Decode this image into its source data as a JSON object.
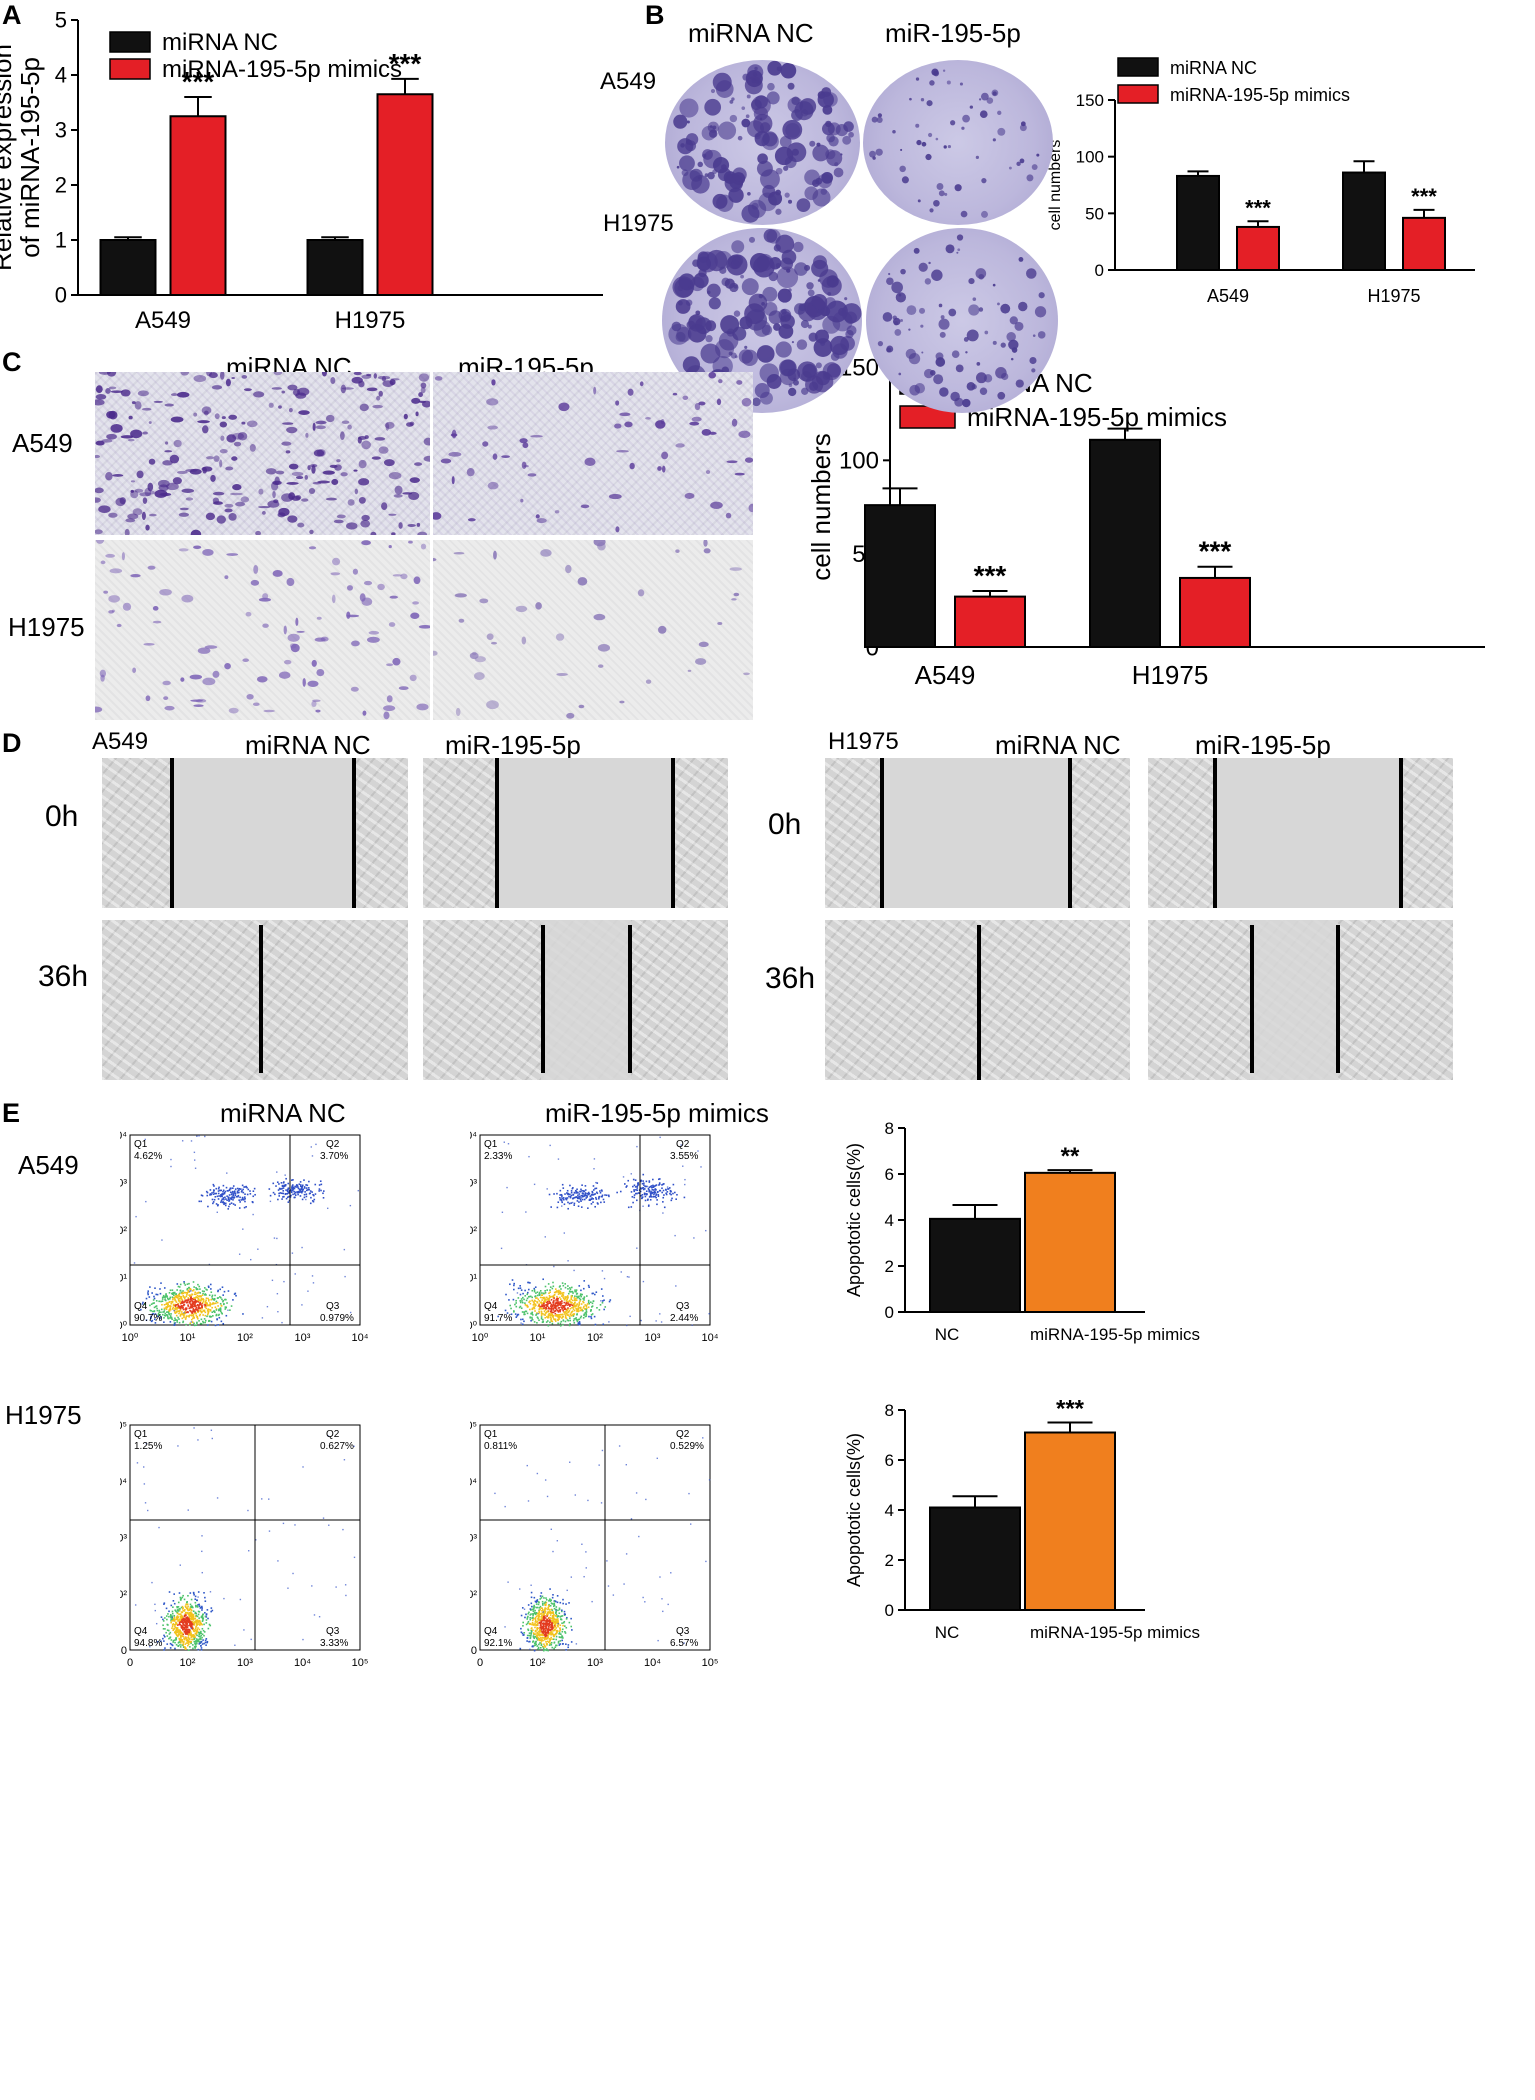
{
  "panels": {
    "A": "A",
    "B": "B",
    "C": "C",
    "D": "D",
    "E": "E"
  },
  "panel_b": {
    "col_labels": [
      "miRNA NC",
      "miR-195-5p"
    ],
    "row_labels": [
      "A549",
      "H1975"
    ]
  },
  "panel_c": {
    "col_labels": [
      "miRNA NC",
      "miR-195-5p"
    ],
    "row_labels": [
      "A549",
      "H1975"
    ]
  },
  "panel_d": {
    "left_cell": "A549",
    "right_cell": "H1975",
    "col_labels": [
      "miRNA NC",
      "miR-195-5p"
    ],
    "time_labels": [
      "0h",
      "36h"
    ]
  },
  "panel_e": {
    "col_labels": [
      "miRNA NC",
      "miR-195-5p mimics"
    ],
    "row_labels": [
      "A549",
      "H1975"
    ],
    "flow": [
      {
        "q1": "Q1",
        "q1v": "4.62%",
        "q2": "Q2",
        "q2v": "3.70%",
        "q3": "Q3",
        "q3v": "0.979%",
        "q4": "Q4",
        "q4v": "90.7%"
      },
      {
        "q1": "Q1",
        "q1v": "2.33%",
        "q2": "Q2",
        "q2v": "3.55%",
        "q3": "Q3",
        "q3v": "2.44%",
        "q4": "Q4",
        "q4v": "91.7%"
      },
      {
        "q1": "Q1",
        "q1v": "1.25%",
        "q2": "Q2",
        "q2v": "0.627%",
        "q3": "Q3",
        "q3v": "3.33%",
        "q4": "Q4",
        "q4v": "94.8%"
      },
      {
        "q1": "Q1",
        "q1v": "0.811%",
        "q2": "Q2",
        "q2v": "0.529%",
        "q3": "Q3",
        "q3v": "6.57%",
        "q4": "Q4",
        "q4v": "92.1%"
      }
    ]
  },
  "colors": {
    "nc": "#111111",
    "mimic": "#e41f26",
    "mimic_orange": "#f07f1e"
  },
  "chart_data": [
    {
      "id": "A",
      "type": "bar",
      "categories": [
        "A549",
        "H1975"
      ],
      "series": [
        {
          "name": "miRNA NC",
          "values": [
            1.0,
            1.0
          ],
          "errors": [
            0.05,
            0.05
          ]
        },
        {
          "name": "miRNA-195-5p mimics",
          "values": [
            3.25,
            3.65
          ],
          "errors": [
            0.35,
            0.28
          ]
        }
      ],
      "significance": [
        "***",
        "***"
      ],
      "ylabel": "Relative expression of miRNA-195-5p",
      "ylim": [
        0,
        5
      ],
      "yticks": [
        0,
        1,
        2,
        3,
        4,
        5
      ],
      "legend": "top-left"
    },
    {
      "id": "B",
      "type": "bar",
      "categories": [
        "A549",
        "H1975"
      ],
      "series": [
        {
          "name": "miRNA NC",
          "values": [
            83,
            86
          ],
          "errors": [
            4,
            10
          ]
        },
        {
          "name": "miRNA-195-5p mimics",
          "values": [
            38,
            46
          ],
          "errors": [
            5,
            7
          ]
        }
      ],
      "significance": [
        "***",
        "***"
      ],
      "ylabel": "cell numbers",
      "ylim": [
        0,
        150
      ],
      "yticks": [
        0,
        50,
        100,
        150
      ],
      "legend": "top-left"
    },
    {
      "id": "C",
      "type": "bar",
      "categories": [
        "A549",
        "H1975"
      ],
      "series": [
        {
          "name": "miRNA NC",
          "values": [
            76,
            111
          ],
          "errors": [
            9,
            6
          ]
        },
        {
          "name": "miRNA-195-5p mimics",
          "values": [
            27,
            37
          ],
          "errors": [
            3,
            6
          ]
        }
      ],
      "significance": [
        "***",
        "***"
      ],
      "ylabel": "cell numbers",
      "ylim": [
        0,
        150
      ],
      "yticks": [
        0,
        50,
        100,
        150
      ],
      "legend": "top-left"
    },
    {
      "id": "E1",
      "type": "bar",
      "categories": [
        "NC",
        "miRNA-195-5p mimics"
      ],
      "series": [
        {
          "name": "",
          "values": [
            4.05,
            6.05
          ],
          "errors": [
            0.6,
            0.12
          ]
        }
      ],
      "significance": [
        "",
        "**"
      ],
      "ylabel": "Apopototic cells(%)",
      "ylim": [
        0,
        8
      ],
      "yticks": [
        0,
        2,
        4,
        6,
        8
      ]
    },
    {
      "id": "E2",
      "type": "bar",
      "categories": [
        "NC",
        "miRNA-195-5p mimics"
      ],
      "series": [
        {
          "name": "",
          "values": [
            4.1,
            7.1
          ],
          "errors": [
            0.45,
            0.4
          ]
        }
      ],
      "significance": [
        "",
        "***"
      ],
      "ylabel": "Apopototic cells(%)",
      "ylim": [
        0,
        8
      ],
      "yticks": [
        0,
        2,
        4,
        6,
        8
      ]
    }
  ],
  "flow_axes": {
    "a549_y": [
      "10⁰",
      "10¹",
      "10²",
      "10³",
      "10⁴"
    ],
    "a549_x": [
      "10⁰",
      "10¹",
      "10²",
      "10³",
      "10⁴"
    ],
    "h1975_y": [
      "0",
      "10²",
      "10³",
      "10⁴",
      "10⁵"
    ],
    "h1975_x": [
      "0",
      "10²",
      "10³",
      "10⁴",
      "10⁵"
    ]
  }
}
